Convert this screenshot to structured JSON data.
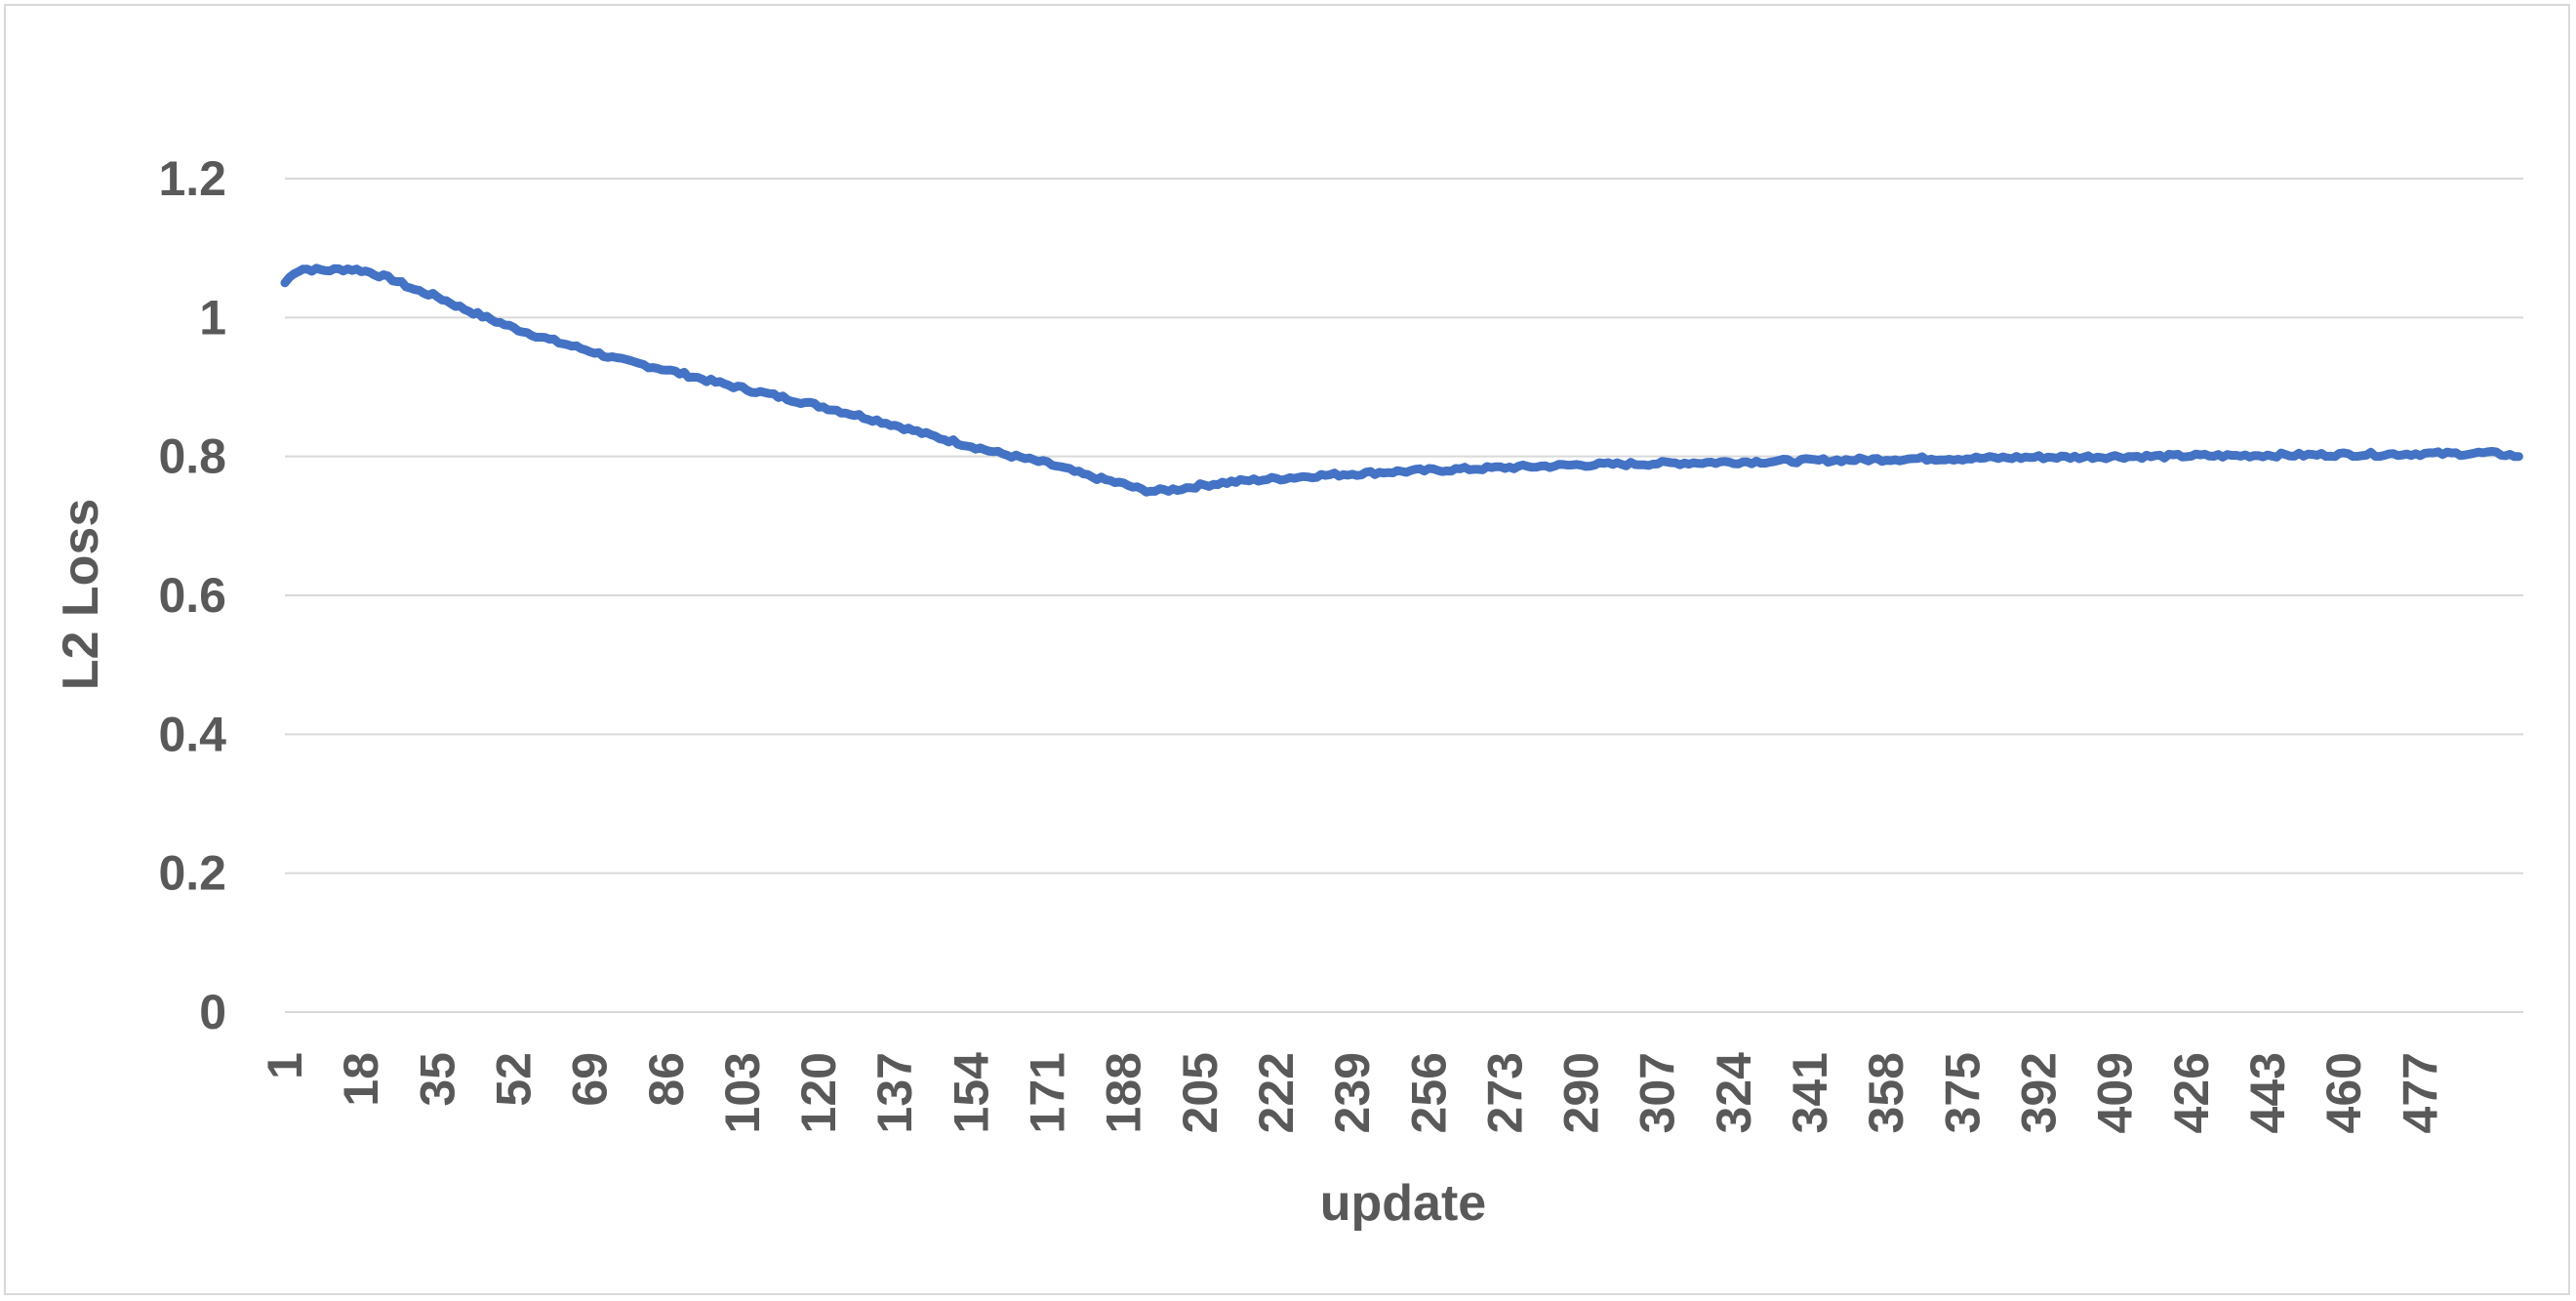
{
  "chart_data": {
    "type": "line",
    "title": "",
    "xlabel": "update",
    "ylabel": "L2 Loss",
    "x_range": [
      1,
      500
    ],
    "x_tick_labels": [
      "1",
      "18",
      "35",
      "52",
      "69",
      "86",
      "103",
      "120",
      "137",
      "154",
      "171",
      "188",
      "205",
      "222",
      "239",
      "256",
      "273",
      "290",
      "307",
      "324",
      "341",
      "358",
      "375",
      "392",
      "409",
      "426",
      "443",
      "460",
      "477"
    ],
    "y_tick_labels": [
      "0",
      "0.2",
      "0.4",
      "0.6",
      "0.8",
      "1",
      "1.2"
    ],
    "ylim": [
      0,
      1.2
    ],
    "grid": true,
    "legend": "none",
    "series": [
      {
        "color": "#4472C4",
        "x": [
          1,
          3,
          5,
          10,
          15,
          18,
          20,
          25,
          30,
          35,
          40,
          45,
          52,
          60,
          69,
          75,
          86,
          95,
          103,
          110,
          120,
          130,
          137,
          145,
          154,
          160,
          171,
          180,
          188,
          192,
          195,
          200,
          205,
          210,
          215,
          222,
          230,
          239,
          248,
          256,
          265,
          273,
          282,
          290,
          300,
          307,
          315,
          324,
          333,
          341,
          350,
          358,
          367,
          375,
          384,
          392,
          400,
          409,
          418,
          426,
          435,
          443,
          452,
          460,
          468,
          477,
          485,
          492,
          496,
          499
        ],
        "y": [
          1.05,
          1.065,
          1.07,
          1.068,
          1.07,
          1.068,
          1.065,
          1.055,
          1.04,
          1.03,
          1.015,
          1.002,
          0.985,
          0.968,
          0.952,
          0.94,
          0.925,
          0.91,
          0.898,
          0.888,
          0.873,
          0.857,
          0.845,
          0.83,
          0.815,
          0.805,
          0.79,
          0.772,
          0.76,
          0.752,
          0.75,
          0.753,
          0.758,
          0.762,
          0.765,
          0.768,
          0.772,
          0.775,
          0.778,
          0.78,
          0.782,
          0.784,
          0.786,
          0.788,
          0.789,
          0.79,
          0.791,
          0.792,
          0.793,
          0.794,
          0.795,
          0.796,
          0.797,
          0.797,
          0.798,
          0.799,
          0.799,
          0.8,
          0.8,
          0.801,
          0.801,
          0.802,
          0.802,
          0.803,
          0.803,
          0.804,
          0.804,
          0.805,
          0.803,
          0.8
        ]
      }
    ]
  }
}
